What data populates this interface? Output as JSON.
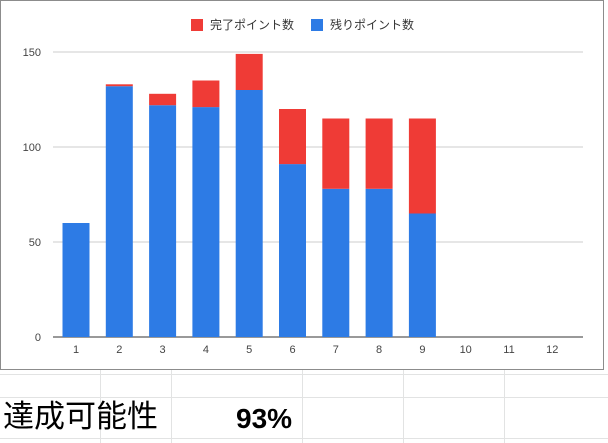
{
  "chart_data": {
    "type": "bar",
    "stacked": true,
    "categories": [
      "1",
      "2",
      "3",
      "4",
      "5",
      "6",
      "7",
      "8",
      "9",
      "10",
      "11",
      "12"
    ],
    "series": [
      {
        "name": "残りポイント数",
        "color": "#2d7be5",
        "values": [
          60,
          132,
          122,
          121,
          130,
          91,
          78,
          78,
          65,
          0,
          0,
          0
        ]
      },
      {
        "name": "完了ポイント数",
        "color": "#ef3b36",
        "values": [
          0,
          1,
          6,
          14,
          19,
          29,
          37,
          37,
          50,
          0,
          0,
          0
        ]
      }
    ],
    "legend_order": [
      "完了ポイント数",
      "残りポイント数"
    ],
    "y_ticks": [
      "0",
      "50",
      "100",
      "150"
    ],
    "ylim": [
      0,
      160
    ],
    "grid": true,
    "legend_position": "top"
  },
  "summary": {
    "label": "達成可能性",
    "value": "93%"
  }
}
